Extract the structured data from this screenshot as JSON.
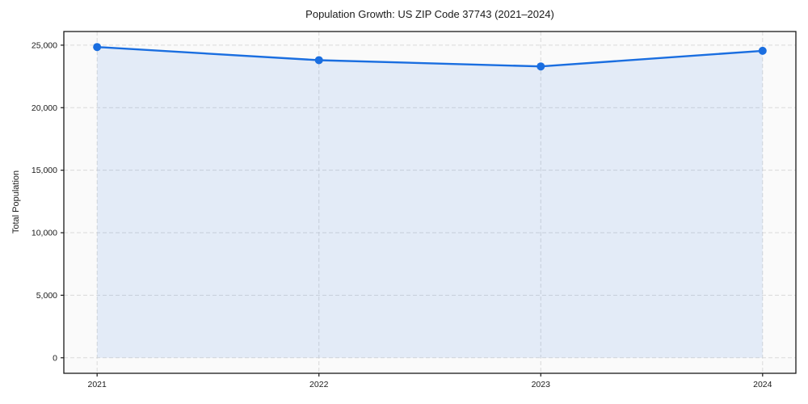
{
  "chart_data": {
    "type": "area",
    "title": "Population Growth: US ZIP Code 37743 (2021–2024)",
    "xlabel": "",
    "ylabel": "Total Population",
    "x": [
      2021,
      2022,
      2023,
      2024
    ],
    "series": [
      {
        "name": "Total Population",
        "values": [
          24850,
          23800,
          23300,
          24550
        ]
      }
    ],
    "baseline": 0,
    "xticks": {
      "values": [
        2021,
        2022,
        2023,
        2024
      ],
      "labels": [
        "2021",
        "2022",
        "2023",
        "2024"
      ]
    },
    "yticks": {
      "values": [
        0,
        5000,
        10000,
        15000,
        20000,
        25000
      ],
      "labels": [
        "0",
        "5,000",
        "10,000",
        "15,000",
        "20,000",
        "25,000"
      ]
    },
    "xlim": [
      2020.85,
      2024.15
    ],
    "ylim": [
      -1242,
      26092
    ],
    "grid": "dashed",
    "legend": "none",
    "colors": {
      "line": "#1a6ee0",
      "fill": "rgba(26,110,224,0.10)",
      "grid": "#d9d9d9",
      "spine": "#1a1a1a",
      "text": "#1a1a1a",
      "plot_bg": "#fafafa",
      "fig_bg": "#ffffff"
    }
  }
}
